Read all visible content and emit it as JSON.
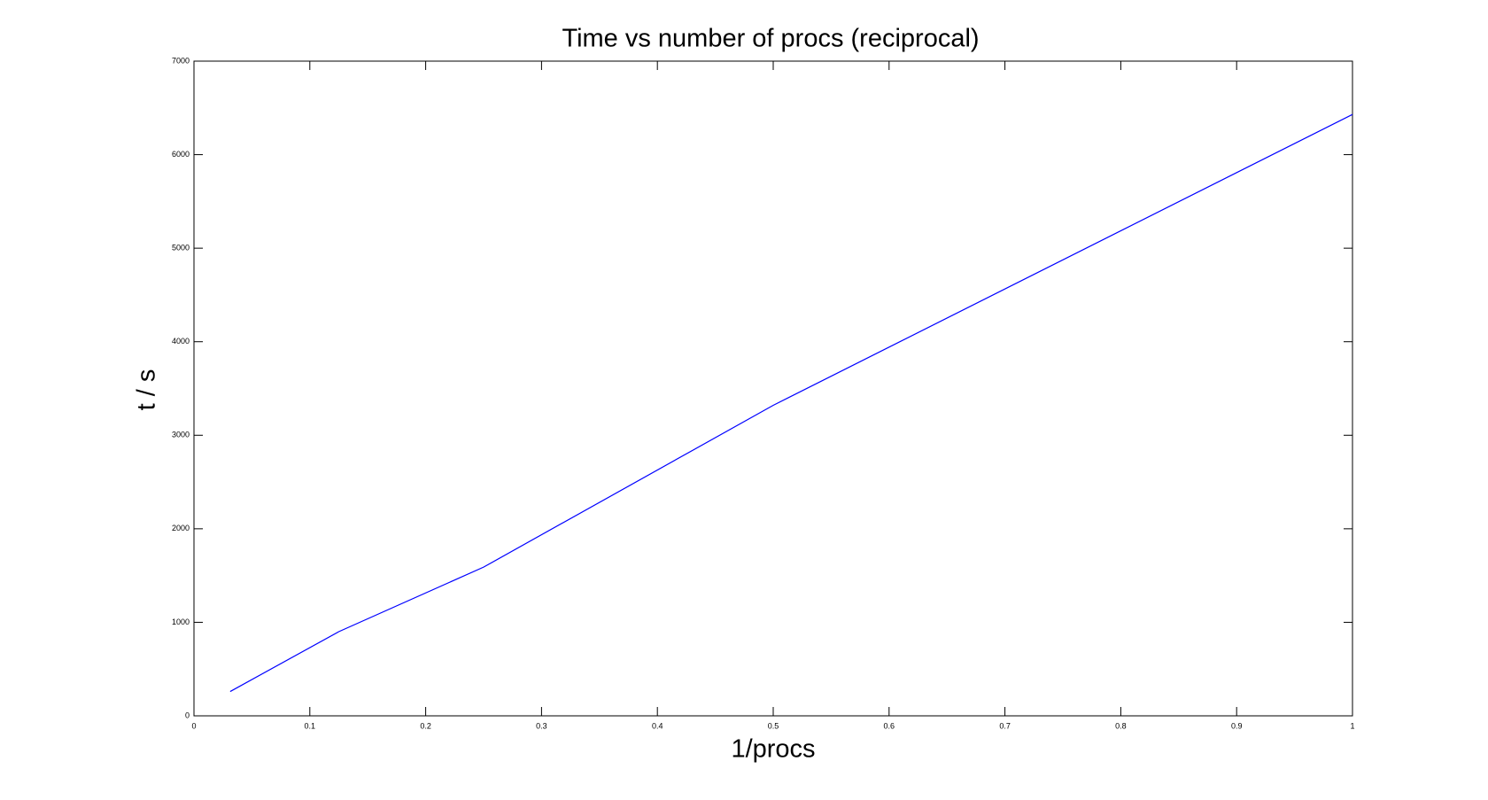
{
  "chart_data": {
    "type": "line",
    "title": "Time vs number of procs (reciprocal)",
    "x_label": "1/procs",
    "y_label": "t / s",
    "x": [
      0.03125,
      0.125,
      0.25,
      0.5,
      1
    ],
    "series": [
      {
        "color": "#0000ff",
        "values": [
          260,
          900,
          1590,
          3320,
          6430
        ]
      }
    ],
    "xlim": [
      0,
      1
    ],
    "xticks": [
      0,
      0.1,
      0.2,
      0.3,
      0.4,
      0.5,
      0.6,
      0.7,
      0.8,
      0.9,
      1
    ],
    "ylim": [
      0,
      7000
    ],
    "yticks": [
      0,
      1000,
      2000,
      3000,
      4000,
      5000,
      6000,
      7000
    ]
  }
}
